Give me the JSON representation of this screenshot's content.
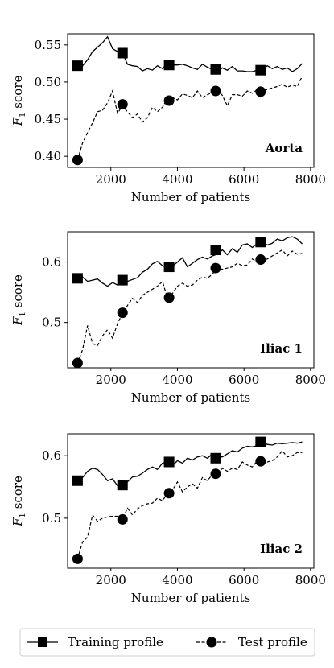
{
  "chart_data": [
    {
      "type": "line",
      "annotation": "Aorta",
      "xlabel": "Number of patients",
      "ylabel": "F1 score",
      "xlim": [
        700,
        8100
      ],
      "ylim": [
        0.385,
        0.565
      ],
      "xticks": [
        "2000",
        "4000",
        "6000",
        "8000"
      ],
      "yticks": [
        "0.40",
        "0.45",
        "0.50",
        "0.55"
      ],
      "series": [
        {
          "name": "Training profile",
          "x": [
            1000,
            1150,
            1300,
            1450,
            1600,
            1750,
            1900,
            2050,
            2200,
            2350,
            2500,
            2650,
            2800,
            2950,
            3100,
            3250,
            3400,
            3550,
            3700,
            3850,
            4000,
            4150,
            4300,
            4450,
            4600,
            4750,
            4900,
            5050,
            5200,
            5350,
            5500,
            5650,
            5800,
            5950,
            6100,
            6250,
            6400,
            6550,
            6700,
            6850,
            7000,
            7150,
            7300,
            7450,
            7600,
            7750
          ],
          "y": [
            0.522,
            0.522,
            0.53,
            0.541,
            0.547,
            0.553,
            0.561,
            0.545,
            0.541,
            0.539,
            0.524,
            0.522,
            0.521,
            0.515,
            0.518,
            0.516,
            0.522,
            0.518,
            0.526,
            0.523,
            0.523,
            0.524,
            0.522,
            0.519,
            0.517,
            0.524,
            0.52,
            0.517,
            0.514,
            0.519,
            0.516,
            0.521,
            0.515,
            0.515,
            0.514,
            0.514,
            0.516,
            0.516,
            0.522,
            0.518,
            0.521,
            0.517,
            0.519,
            0.514,
            0.518,
            0.525
          ],
          "markers_x": [
            1000,
            2350,
            3750,
            5150,
            6500
          ],
          "markers_y": [
            0.522,
            0.539,
            0.523,
            0.517,
            0.516
          ]
        },
        {
          "name": "Test profile",
          "x": [
            1000,
            1150,
            1300,
            1450,
            1600,
            1750,
            1900,
            2050,
            2200,
            2350,
            2500,
            2650,
            2800,
            2950,
            3100,
            3250,
            3400,
            3550,
            3700,
            3850,
            4000,
            4150,
            4300,
            4450,
            4600,
            4750,
            4900,
            5050,
            5200,
            5350,
            5500,
            5650,
            5800,
            5950,
            6100,
            6250,
            6400,
            6550,
            6700,
            6850,
            7000,
            7150,
            7300,
            7450,
            7600,
            7750
          ],
          "y": [
            0.395,
            0.418,
            0.432,
            0.445,
            0.46,
            0.462,
            0.472,
            0.488,
            0.458,
            0.468,
            0.46,
            0.452,
            0.457,
            0.446,
            0.452,
            0.466,
            0.46,
            0.466,
            0.478,
            0.479,
            0.476,
            0.484,
            0.482,
            0.479,
            0.488,
            0.479,
            0.483,
            0.486,
            0.489,
            0.482,
            0.468,
            0.483,
            0.483,
            0.481,
            0.488,
            0.485,
            0.49,
            0.488,
            0.49,
            0.492,
            0.494,
            0.497,
            0.493,
            0.496,
            0.494,
            0.508
          ],
          "markers_x": [
            1000,
            2350,
            3750,
            5150,
            6500
          ],
          "markers_y": [
            0.395,
            0.47,
            0.475,
            0.488,
            0.487
          ]
        }
      ]
    },
    {
      "type": "line",
      "annotation": "Iliac 1",
      "xlabel": "Number of patients",
      "ylabel": "F1 score",
      "xlim": [
        700,
        8100
      ],
      "ylim": [
        0.425,
        0.65
      ],
      "xticks": [
        "2000",
        "4000",
        "6000",
        "8000"
      ],
      "yticks": [
        "0.5",
        "0.6"
      ],
      "series": [
        {
          "name": "Training profile",
          "x": [
            1000,
            1150,
            1300,
            1450,
            1600,
            1750,
            1900,
            2050,
            2200,
            2350,
            2500,
            2650,
            2800,
            2950,
            3100,
            3250,
            3400,
            3550,
            3700,
            3850,
            4000,
            4150,
            4300,
            4450,
            4600,
            4750,
            4900,
            5050,
            5200,
            5350,
            5500,
            5650,
            5800,
            5950,
            6100,
            6250,
            6400,
            6550,
            6700,
            6850,
            7000,
            7150,
            7300,
            7450,
            7600,
            7750
          ],
          "y": [
            0.573,
            0.575,
            0.568,
            0.57,
            0.572,
            0.565,
            0.56,
            0.566,
            0.562,
            0.57,
            0.568,
            0.571,
            0.574,
            0.583,
            0.588,
            0.597,
            0.601,
            0.594,
            0.59,
            0.593,
            0.6,
            0.607,
            0.592,
            0.598,
            0.604,
            0.608,
            0.605,
            0.61,
            0.613,
            0.62,
            0.612,
            0.622,
            0.616,
            0.628,
            0.63,
            0.624,
            0.631,
            0.634,
            0.628,
            0.631,
            0.638,
            0.635,
            0.64,
            0.642,
            0.638,
            0.63
          ],
          "markers_x": [
            1000,
            2350,
            3750,
            5150,
            6500
          ],
          "markers_y": [
            0.573,
            0.57,
            0.592,
            0.62,
            0.633
          ]
        },
        {
          "name": "Test profile",
          "x": [
            1000,
            1150,
            1300,
            1450,
            1600,
            1750,
            1900,
            2050,
            2200,
            2350,
            2500,
            2650,
            2800,
            2950,
            3100,
            3250,
            3400,
            3550,
            3700,
            3850,
            4000,
            4150,
            4300,
            4450,
            4600,
            4750,
            4900,
            5050,
            5200,
            5350,
            5500,
            5650,
            5800,
            5950,
            6100,
            6250,
            6400,
            6550,
            6700,
            6850,
            7000,
            7150,
            7300,
            7450,
            7600,
            7750
          ],
          "y": [
            0.433,
            0.455,
            0.495,
            0.465,
            0.462,
            0.478,
            0.488,
            0.474,
            0.498,
            0.515,
            0.528,
            0.54,
            0.533,
            0.545,
            0.55,
            0.555,
            0.56,
            0.568,
            0.54,
            0.548,
            0.56,
            0.565,
            0.56,
            0.562,
            0.57,
            0.575,
            0.573,
            0.58,
            0.59,
            0.588,
            0.59,
            0.592,
            0.598,
            0.594,
            0.595,
            0.605,
            0.6,
            0.603,
            0.605,
            0.61,
            0.615,
            0.62,
            0.61,
            0.618,
            0.613,
            0.614
          ],
          "markers_x": [
            1000,
            2350,
            3750,
            5150,
            6500
          ],
          "markers_y": [
            0.433,
            0.516,
            0.541,
            0.59,
            0.604
          ]
        }
      ]
    },
    {
      "type": "line",
      "annotation": "Iliac 2",
      "xlabel": "Number of patients",
      "ylabel": "F1 score",
      "xlim": [
        700,
        8100
      ],
      "ylim": [
        0.42,
        0.635
      ],
      "xticks": [
        "2000",
        "4000",
        "6000",
        "8000"
      ],
      "yticks": [
        "0.5",
        "0.6"
      ],
      "series": [
        {
          "name": "Training profile",
          "x": [
            1000,
            1150,
            1300,
            1450,
            1600,
            1750,
            1900,
            2050,
            2200,
            2350,
            2500,
            2650,
            2800,
            2950,
            3100,
            3250,
            3400,
            3550,
            3700,
            3850,
            4000,
            4150,
            4300,
            4450,
            4600,
            4750,
            4900,
            5050,
            5200,
            5350,
            5500,
            5650,
            5800,
            5950,
            6100,
            6250,
            6400,
            6550,
            6700,
            6850,
            7000,
            7150,
            7300,
            7450,
            7600,
            7750
          ],
          "y": [
            0.56,
            0.565,
            0.575,
            0.58,
            0.578,
            0.57,
            0.56,
            0.563,
            0.552,
            0.553,
            0.558,
            0.566,
            0.567,
            0.572,
            0.578,
            0.582,
            0.578,
            0.588,
            0.59,
            0.584,
            0.592,
            0.588,
            0.596,
            0.593,
            0.598,
            0.6,
            0.596,
            0.603,
            0.598,
            0.598,
            0.603,
            0.608,
            0.606,
            0.612,
            0.615,
            0.614,
            0.616,
            0.622,
            0.618,
            0.617,
            0.62,
            0.619,
            0.62,
            0.621,
            0.62,
            0.622
          ],
          "markers_x": [
            1000,
            2350,
            3750,
            5150,
            6500
          ],
          "markers_y": [
            0.56,
            0.553,
            0.59,
            0.596,
            0.622
          ]
        },
        {
          "name": "Test profile",
          "x": [
            1000,
            1150,
            1300,
            1450,
            1600,
            1750,
            1900,
            2050,
            2200,
            2350,
            2500,
            2650,
            2800,
            2950,
            3100,
            3250,
            3400,
            3550,
            3700,
            3850,
            4000,
            4150,
            4300,
            4450,
            4600,
            4750,
            4900,
            5050,
            5200,
            5350,
            5500,
            5650,
            5800,
            5950,
            6100,
            6250,
            6400,
            6550,
            6700,
            6850,
            7000,
            7150,
            7300,
            7450,
            7600,
            7750
          ],
          "y": [
            0.435,
            0.462,
            0.47,
            0.505,
            0.495,
            0.5,
            0.502,
            0.503,
            0.503,
            0.498,
            0.516,
            0.505,
            0.515,
            0.52,
            0.523,
            0.524,
            0.532,
            0.528,
            0.54,
            0.545,
            0.558,
            0.542,
            0.55,
            0.555,
            0.548,
            0.565,
            0.56,
            0.57,
            0.565,
            0.58,
            0.575,
            0.58,
            0.578,
            0.59,
            0.585,
            0.582,
            0.592,
            0.594,
            0.59,
            0.592,
            0.598,
            0.608,
            0.598,
            0.6,
            0.605,
            0.605
          ],
          "markers_x": [
            1000,
            2350,
            3750,
            5150,
            6500
          ],
          "markers_y": [
            0.435,
            0.498,
            0.54,
            0.571,
            0.591
          ]
        }
      ]
    }
  ],
  "legend": {
    "train_label": "Training profile",
    "test_label": "Test profile"
  }
}
